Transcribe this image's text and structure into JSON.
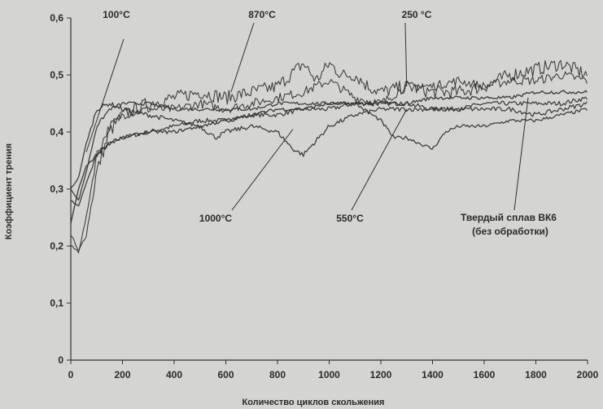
{
  "chart_data": {
    "type": "line",
    "xlabel": "Количество циклов скольжения",
    "ylabel": "Коэффициент трения",
    "xlim": [
      0,
      2000
    ],
    "ylim": [
      0,
      0.6
    ],
    "x_ticks": [
      "0",
      "200",
      "400",
      "600",
      "800",
      "1000",
      "1200",
      "1400",
      "1600",
      "1800",
      "2000"
    ],
    "y_ticks": [
      "0",
      "0,1",
      "0,2",
      "0,3",
      "0,4",
      "0,5",
      "0,6"
    ],
    "grid": false,
    "legend": "none",
    "series": [
      {
        "name": "100°C",
        "x": [
          0,
          30,
          60,
          100,
          150,
          200,
          300,
          400,
          500,
          600,
          700,
          800,
          900,
          1000,
          1100,
          1200,
          1300,
          1400,
          1500,
          1600,
          1700,
          1800,
          1900,
          2000
        ],
        "y": [
          0.28,
          0.27,
          0.31,
          0.36,
          0.38,
          0.39,
          0.4,
          0.41,
          0.42,
          0.42,
          0.43,
          0.43,
          0.44,
          0.44,
          0.45,
          0.45,
          0.45,
          0.44,
          0.44,
          0.45,
          0.45,
          0.45,
          0.45,
          0.46
        ]
      },
      {
        "name": "870°C",
        "x": [
          0,
          30,
          60,
          100,
          150,
          200,
          300,
          400,
          500,
          600,
          700,
          800,
          850,
          900,
          950,
          1000,
          1050,
          1100,
          1150,
          1200,
          1300,
          1400,
          1500,
          1600,
          1700,
          1800,
          1900,
          2000
        ],
        "y": [
          0.22,
          0.19,
          0.22,
          0.33,
          0.4,
          0.43,
          0.45,
          0.46,
          0.47,
          0.46,
          0.47,
          0.48,
          0.5,
          0.52,
          0.49,
          0.52,
          0.5,
          0.5,
          0.48,
          0.47,
          0.48,
          0.47,
          0.47,
          0.48,
          0.5,
          0.51,
          0.52,
          0.5
        ]
      },
      {
        "name": "250 °C",
        "x": [
          0,
          30,
          60,
          100,
          150,
          200,
          300,
          400,
          500,
          600,
          700,
          800,
          900,
          1000,
          1100,
          1200,
          1300,
          1400,
          1500,
          1600,
          1700,
          1800,
          1900,
          2000
        ],
        "y": [
          0.2,
          0.19,
          0.25,
          0.36,
          0.41,
          0.43,
          0.44,
          0.44,
          0.45,
          0.44,
          0.45,
          0.46,
          0.47,
          0.49,
          0.46,
          0.45,
          0.48,
          0.48,
          0.49,
          0.48,
          0.49,
          0.49,
          0.5,
          0.49
        ]
      },
      {
        "name": "1000°C",
        "x": [
          0,
          30,
          60,
          100,
          150,
          200,
          300,
          400,
          500,
          560,
          600,
          700,
          800,
          860,
          900,
          940,
          1000,
          1100,
          1200,
          1300,
          1400,
          1500,
          1600,
          1700,
          1800,
          1900,
          2000
        ],
        "y": [
          0.3,
          0.32,
          0.38,
          0.44,
          0.45,
          0.44,
          0.43,
          0.42,
          0.41,
          0.39,
          0.4,
          0.41,
          0.4,
          0.37,
          0.36,
          0.38,
          0.41,
          0.43,
          0.44,
          0.44,
          0.44,
          0.44,
          0.44,
          0.44,
          0.43,
          0.44,
          0.45
        ]
      },
      {
        "name": "550°C",
        "x": [
          0,
          30,
          60,
          100,
          150,
          200,
          300,
          400,
          500,
          600,
          700,
          800,
          900,
          1000,
          1100,
          1200,
          1250,
          1300,
          1350,
          1400,
          1450,
          1500,
          1600,
          1700,
          1800,
          1900,
          2000
        ],
        "y": [
          0.3,
          0.28,
          0.33,
          0.41,
          0.44,
          0.45,
          0.45,
          0.44,
          0.44,
          0.44,
          0.44,
          0.45,
          0.45,
          0.45,
          0.45,
          0.42,
          0.39,
          0.39,
          0.38,
          0.37,
          0.4,
          0.41,
          0.41,
          0.42,
          0.42,
          0.43,
          0.44
        ]
      },
      {
        "name": "Твердый сплав ВК6 (без обработки)",
        "x": [
          0,
          30,
          60,
          100,
          150,
          200,
          300,
          400,
          500,
          600,
          700,
          800,
          900,
          1000,
          1100,
          1200,
          1300,
          1400,
          1500,
          1600,
          1700,
          1800,
          1900,
          2000
        ],
        "y": [
          0.24,
          0.3,
          0.34,
          0.36,
          0.38,
          0.39,
          0.4,
          0.4,
          0.41,
          0.42,
          0.43,
          0.44,
          0.44,
          0.45,
          0.45,
          0.45,
          0.45,
          0.46,
          0.46,
          0.46,
          0.46,
          0.47,
          0.47,
          0.47
        ]
      }
    ],
    "annotations": [
      {
        "text": "100°C",
        "series": "100°C"
      },
      {
        "text": "870°C",
        "series": "870°C"
      },
      {
        "text": "250 °C",
        "series": "250 °C"
      },
      {
        "text": "1000°C",
        "series": "1000°C"
      },
      {
        "text": "550°C",
        "series": "550°C"
      },
      {
        "text": "Твердый сплав ВК6",
        "series": "Твердый сплав ВК6 (без обработки)"
      },
      {
        "text": "(без обработки)",
        "series": "Твердый сплав ВК6 (без обработки)"
      }
    ],
    "colors": {
      "background": "#d4d4d2",
      "line": "#303030",
      "text": "#2a2a2a"
    }
  }
}
